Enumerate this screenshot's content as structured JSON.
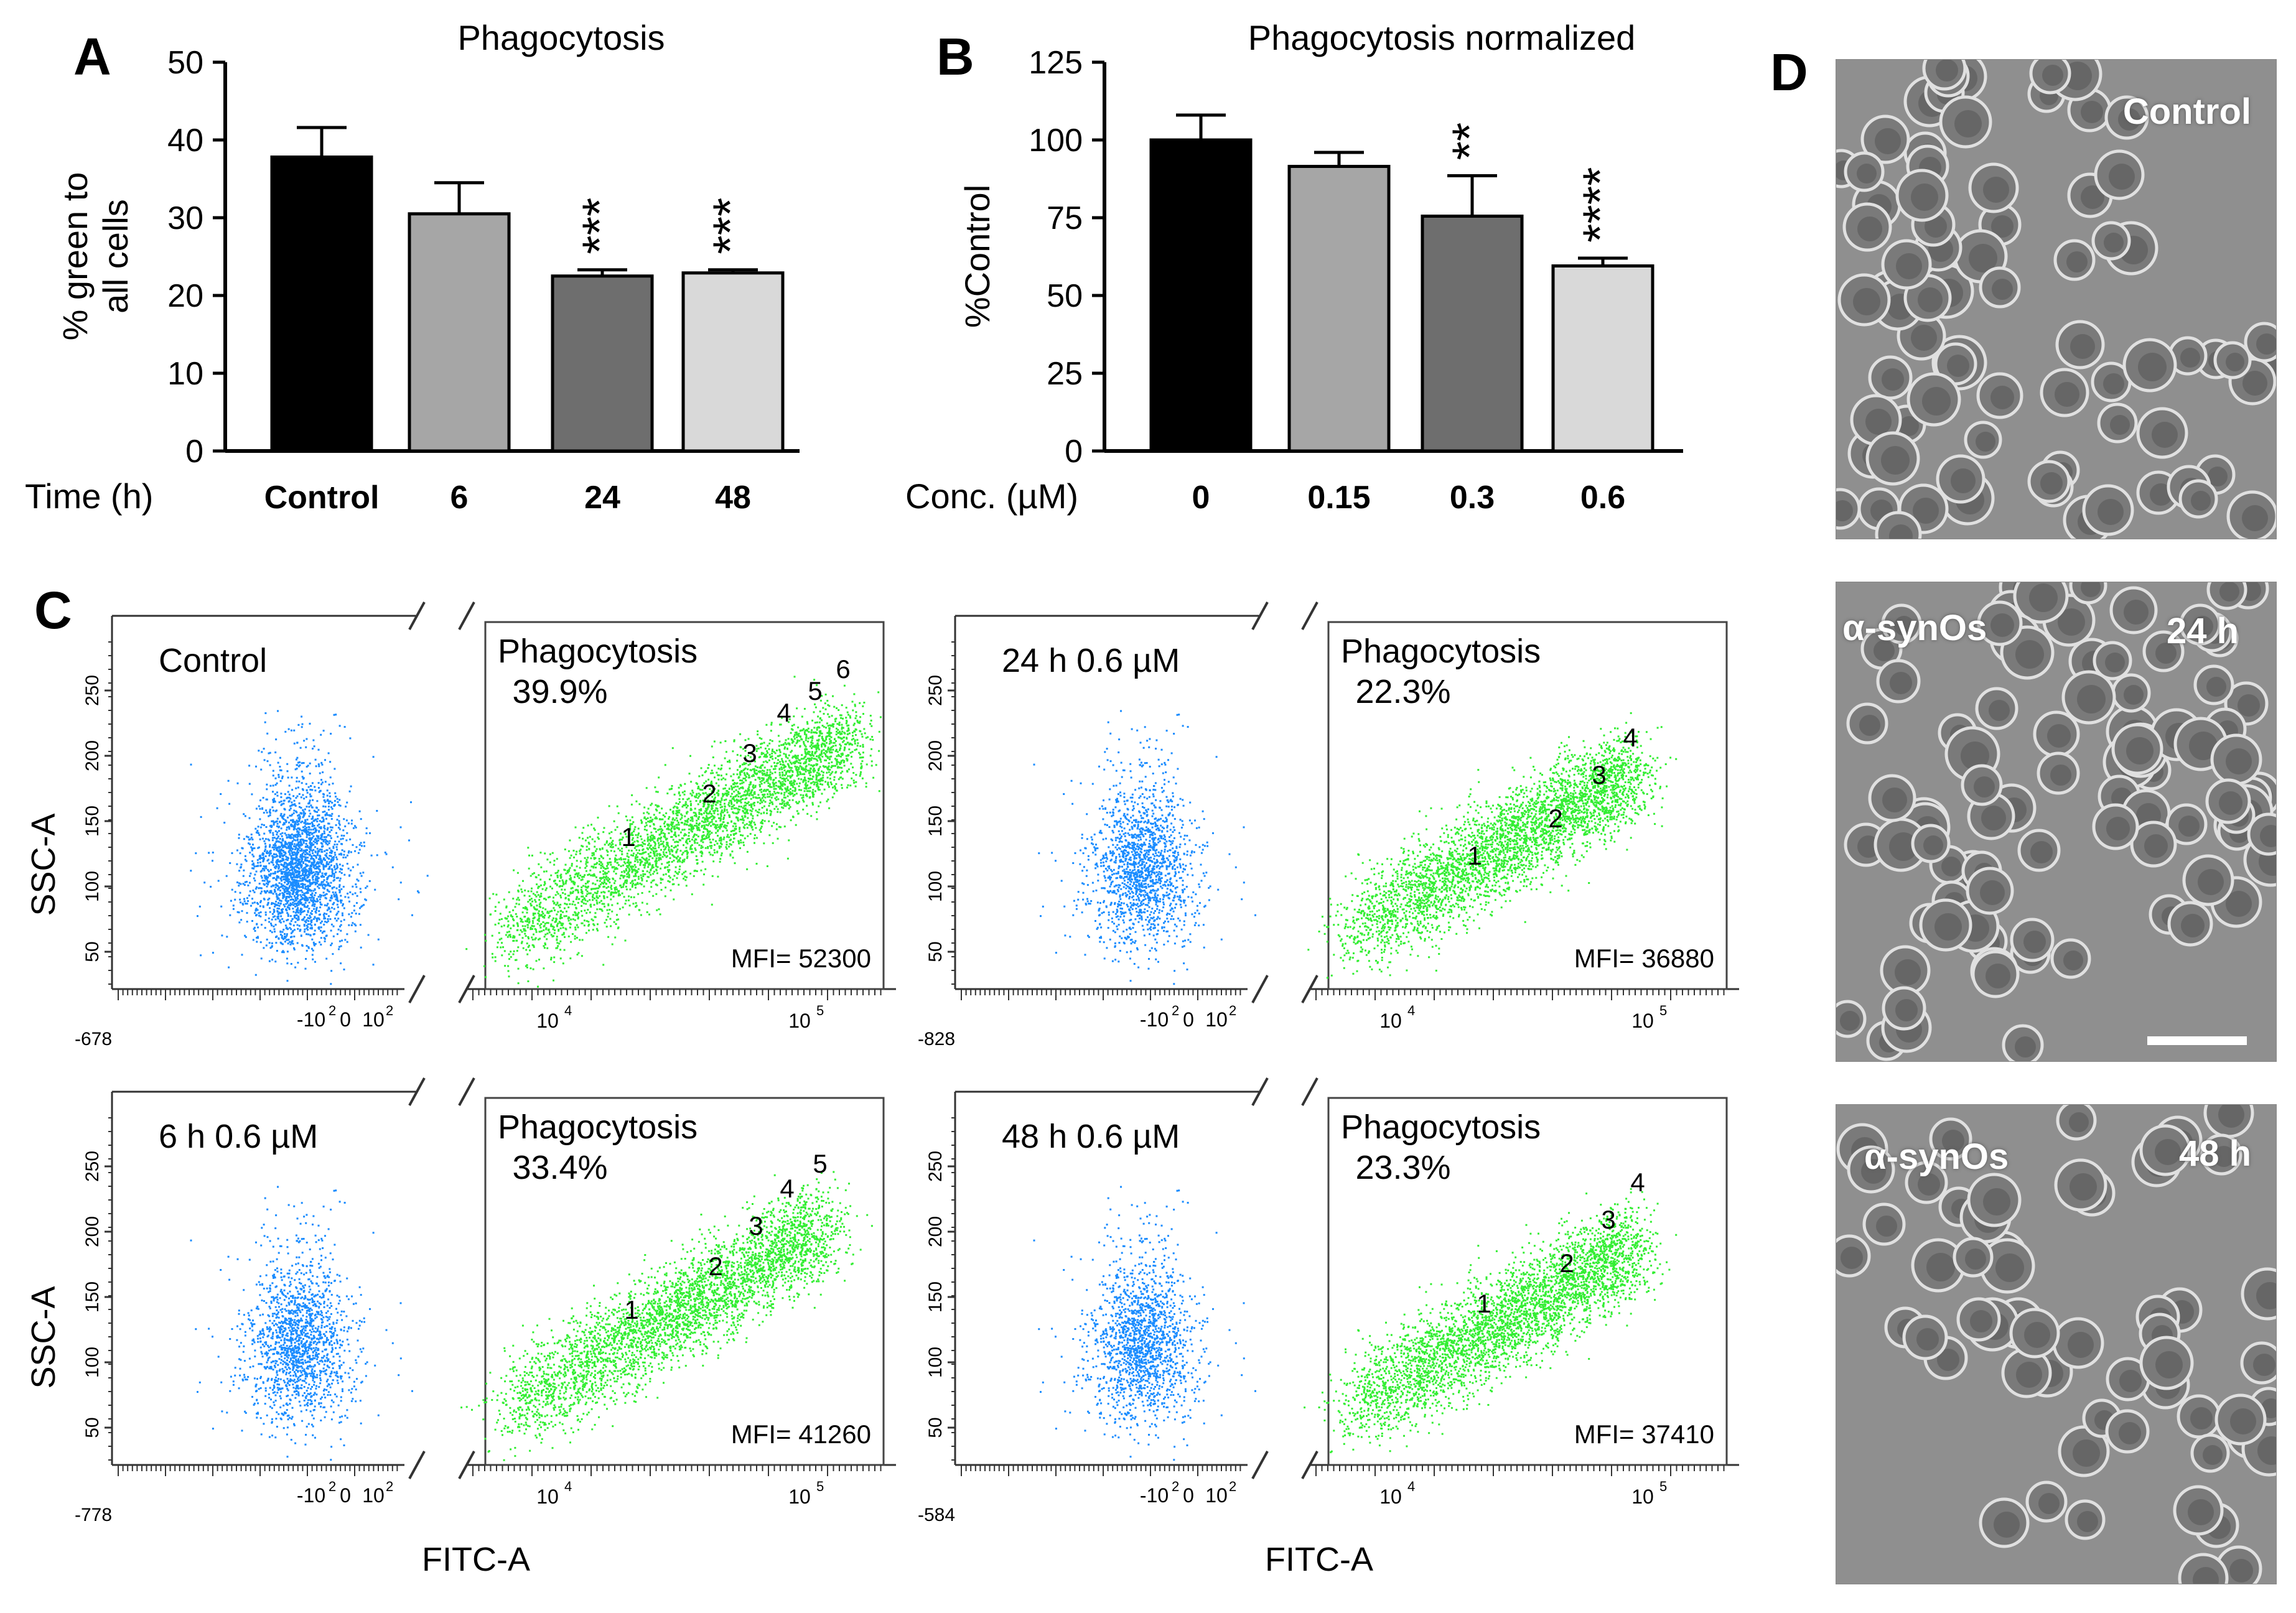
{
  "panel_letters": {
    "A": "A",
    "B": "B",
    "C": "C",
    "D": "D"
  },
  "chart_data": [
    {
      "panel": "A",
      "type": "bar",
      "title": "Phagocytosis",
      "ylabel": "% green to all cells",
      "ylabel_lines": [
        "% green to",
        "all cells"
      ],
      "xlabel": "Time (h)",
      "categories": [
        "Control",
        "6",
        "24",
        "48"
      ],
      "values": [
        37.8,
        30.5,
        22.5,
        22.9
      ],
      "errors": [
        3.8,
        4.0,
        0.8,
        0.4
      ],
      "significance": [
        "",
        "",
        "***",
        "***"
      ],
      "ylim": [
        0,
        50
      ],
      "yticks": [
        0,
        10,
        20,
        30,
        40,
        50
      ],
      "colors": [
        "#000000",
        "#a6a6a6",
        "#6e6e6e",
        "#d9d9d9"
      ]
    },
    {
      "panel": "B",
      "type": "bar",
      "title": "Phagocytosis normalized",
      "ylabel": "%Control",
      "xlabel": "Conc. (µM)",
      "categories": [
        "0",
        "0.15",
        "0.3",
        "0.6"
      ],
      "values": [
        100,
        91.5,
        75.5,
        59.5
      ],
      "errors": [
        8,
        4.5,
        13,
        2.5
      ],
      "significance": [
        "",
        "",
        "**",
        "****"
      ],
      "ylim": [
        0,
        125
      ],
      "yticks": [
        0,
        25,
        50,
        75,
        100,
        125
      ],
      "colors": [
        "#000000",
        "#a6a6a6",
        "#6e6e6e",
        "#d9d9d9"
      ]
    },
    {
      "panel": "C",
      "type": "scatter",
      "ylabel": "SSC-A",
      "xlabel": "FITC-A",
      "ssc_ticks": [
        "50",
        "100",
        "150",
        "200",
        "250"
      ],
      "plots": [
        {
          "condition": "Control",
          "phago_label": "Phagocytosis",
          "percent": "39.9%",
          "mfi": "MFI= 52300",
          "axis_min": "-678",
          "gates": [
            "1",
            "2",
            "3",
            "4",
            "5",
            "6"
          ],
          "percent_value": 39.9,
          "mfi_value": 52300
        },
        {
          "condition": "24 h 0.6 µM",
          "phago_label": "Phagocytosis",
          "percent": "22.3%",
          "mfi": "MFI= 36880",
          "axis_min": "-828",
          "gates": [
            "1",
            "2",
            "3",
            "4"
          ],
          "percent_value": 22.3,
          "mfi_value": 36880
        },
        {
          "condition": "6 h 0.6 µM",
          "phago_label": "Phagocytosis",
          "percent": "33.4%",
          "mfi": "MFI= 41260",
          "axis_min": "-778",
          "gates": [
            "1",
            "2",
            "3",
            "4",
            "5"
          ],
          "percent_value": 33.4,
          "mfi_value": 41260
        },
        {
          "condition": "48 h 0.6 µM",
          "phago_label": "Phagocytosis",
          "percent": "23.3%",
          "mfi": "MFI= 37410",
          "axis_min": "-584",
          "gates": [
            "1",
            "2",
            "3",
            "4"
          ],
          "percent_value": 23.3,
          "mfi_value": 37410
        }
      ],
      "neg_ticks": {
        "neg": "-10",
        "zero": "0",
        "pos": "10",
        "exp": "2"
      },
      "log_ticks": {
        "base": "10",
        "e4": "4",
        "e5": "5"
      },
      "colors": {
        "negative_population": "#1a8cff",
        "positive_population": "#33ee33"
      }
    }
  ],
  "micrographs": {
    "panel": "D",
    "images": [
      {
        "left_label": "",
        "right_label": "Control"
      },
      {
        "left_label": "α-synOs",
        "right_label": "24 h"
      },
      {
        "left_label": "α-synOs",
        "right_label": "48 h"
      }
    ]
  }
}
